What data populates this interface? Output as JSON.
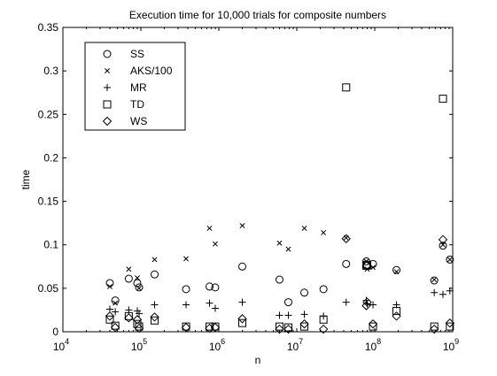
{
  "chart_data": {
    "type": "scatter",
    "title": "Execution time for 10,000 trials for composite numbers",
    "xlabel": "n",
    "ylabel": "time",
    "xscale": "log",
    "xlim": [
      10000,
      1000000000
    ],
    "ylim": [
      0,
      0.35
    ],
    "x_ticks": [
      {
        "value": 10000,
        "base": "10",
        "exp": "4"
      },
      {
        "value": 100000,
        "base": "10",
        "exp": "5"
      },
      {
        "value": 1000000,
        "base": "10",
        "exp": "6"
      },
      {
        "value": 10000000,
        "base": "10",
        "exp": "7"
      },
      {
        "value": 100000000,
        "base": "10",
        "exp": "8"
      },
      {
        "value": 1000000000,
        "base": "10",
        "exp": "9"
      }
    ],
    "y_ticks": [
      {
        "value": 0,
        "label": "0"
      },
      {
        "value": 0.05,
        "label": "0.05"
      },
      {
        "value": 0.1,
        "label": "0.1"
      },
      {
        "value": 0.15,
        "label": "0.15"
      },
      {
        "value": 0.2,
        "label": "0.2"
      },
      {
        "value": 0.25,
        "label": "0.25"
      },
      {
        "value": 0.3,
        "label": "0.3"
      },
      {
        "value": 0.35,
        "label": "0.35"
      }
    ],
    "legend_position": "top-left",
    "grid": false,
    "series": [
      {
        "name": "SS",
        "marker": "circle",
        "points": [
          [
            40000,
            0.056
          ],
          [
            47000,
            0.036
          ],
          [
            70000,
            0.061
          ],
          [
            90000,
            0.056
          ],
          [
            95000,
            0.051
          ],
          [
            150000,
            0.066
          ],
          [
            380000,
            0.049
          ],
          [
            760000,
            0.052
          ],
          [
            900000,
            0.051
          ],
          [
            2000000,
            0.075
          ],
          [
            6000000,
            0.06
          ],
          [
            7800000,
            0.034
          ],
          [
            12500000,
            0.045
          ],
          [
            22000000,
            0.049
          ],
          [
            43000000,
            0.078
          ],
          [
            78000000,
            0.081
          ],
          [
            80000000,
            0.076
          ],
          [
            95000000,
            0.078
          ],
          [
            190000000,
            0.071
          ],
          [
            580000000,
            0.059
          ],
          [
            750000000,
            0.099
          ],
          [
            920000000,
            0.083
          ]
        ]
      },
      {
        "name": "AKS/100",
        "marker": "x",
        "points": [
          [
            40000,
            0.052
          ],
          [
            47000,
            0.033
          ],
          [
            70000,
            0.072
          ],
          [
            90000,
            0.062
          ],
          [
            95000,
            0.05
          ],
          [
            150000,
            0.083
          ],
          [
            380000,
            0.084
          ],
          [
            760000,
            0.119
          ],
          [
            900000,
            0.101
          ],
          [
            2000000,
            0.122
          ],
          [
            6000000,
            0.102
          ],
          [
            7800000,
            0.095
          ],
          [
            12500000,
            0.119
          ],
          [
            22000000,
            0.114
          ],
          [
            43000000,
            0.108
          ],
          [
            78000000,
            0.081
          ],
          [
            80000000,
            0.072
          ],
          [
            95000000,
            0.074
          ],
          [
            190000000,
            0.069
          ],
          [
            580000000,
            0.06
          ],
          [
            750000000,
            0.1
          ],
          [
            920000000,
            0.083
          ]
        ]
      },
      {
        "name": "MR",
        "marker": "plus",
        "points": [
          [
            40000,
            0.026
          ],
          [
            47000,
            0.023
          ],
          [
            70000,
            0.025
          ],
          [
            90000,
            0.024
          ],
          [
            95000,
            0.021
          ],
          [
            150000,
            0.031
          ],
          [
            380000,
            0.031
          ],
          [
            760000,
            0.033
          ],
          [
            900000,
            0.027
          ],
          [
            2000000,
            0.034
          ],
          [
            6000000,
            0.019
          ],
          [
            7800000,
            0.019
          ],
          [
            12500000,
            0.02
          ],
          [
            22000000,
            0.018
          ],
          [
            43000000,
            0.034
          ],
          [
            78000000,
            0.036
          ],
          [
            80000000,
            0.032
          ],
          [
            95000000,
            0.031
          ],
          [
            190000000,
            0.031
          ],
          [
            580000000,
            0.045
          ],
          [
            750000000,
            0.043
          ],
          [
            920000000,
            0.047
          ]
        ]
      },
      {
        "name": "TD",
        "marker": "square",
        "points": [
          [
            40000,
            0.014
          ],
          [
            47000,
            0.007
          ],
          [
            70000,
            0.018
          ],
          [
            90000,
            0.009
          ],
          [
            95000,
            0.006
          ],
          [
            150000,
            0.013
          ],
          [
            380000,
            0.006
          ],
          [
            760000,
            0.006
          ],
          [
            900000,
            0.006
          ],
          [
            2000000,
            0.01
          ],
          [
            6000000,
            0.006
          ],
          [
            7800000,
            0.005
          ],
          [
            12500000,
            0.006
          ],
          [
            22000000,
            0.014
          ],
          [
            43000000,
            0.281
          ],
          [
            78000000,
            0.076
          ],
          [
            80000000,
            0.077
          ],
          [
            95000000,
            0.006
          ],
          [
            190000000,
            0.024
          ],
          [
            580000000,
            0.006
          ],
          [
            750000000,
            0.268
          ],
          [
            920000000,
            0.006
          ]
        ]
      },
      {
        "name": "WS",
        "marker": "diamond",
        "points": [
          [
            40000,
            0.018
          ],
          [
            47000,
            0.005
          ],
          [
            70000,
            0.016
          ],
          [
            90000,
            0.014
          ],
          [
            95000,
            0.004
          ],
          [
            150000,
            0.017
          ],
          [
            380000,
            0.005
          ],
          [
            760000,
            0.004
          ],
          [
            900000,
            0.005
          ],
          [
            2000000,
            0.015
          ],
          [
            6000000,
            0.003
          ],
          [
            7800000,
            0.003
          ],
          [
            12500000,
            0.009
          ],
          [
            22000000,
            0.003
          ],
          [
            43000000,
            0.107
          ],
          [
            78000000,
            0.03
          ],
          [
            80000000,
            0.034
          ],
          [
            95000000,
            0.009
          ],
          [
            190000000,
            0.018
          ],
          [
            580000000,
            0.003
          ],
          [
            750000000,
            0.106
          ],
          [
            920000000,
            0.01
          ]
        ]
      }
    ]
  }
}
